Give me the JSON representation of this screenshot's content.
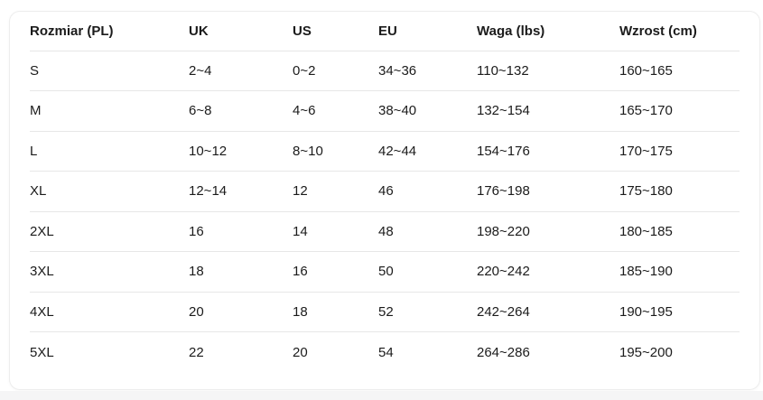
{
  "table": {
    "columns": [
      "Rozmiar (PL)",
      "UK",
      "US",
      "EU",
      "Waga (lbs)",
      "Wzrost (cm)"
    ],
    "rows": [
      [
        "S",
        "2~4",
        "0~2",
        "34~36",
        "110~132",
        "160~165"
      ],
      [
        "M",
        "6~8",
        "4~6",
        "38~40",
        "132~154",
        "165~170"
      ],
      [
        "L",
        "10~12",
        "8~10",
        "42~44",
        "154~176",
        "170~175"
      ],
      [
        "XL",
        "12~14",
        "12",
        "46",
        "176~198",
        "175~180"
      ],
      [
        "2XL",
        "16",
        "14",
        "48",
        "198~220",
        "180~185"
      ],
      [
        "3XL",
        "18",
        "16",
        "50",
        "220~242",
        "185~190"
      ],
      [
        "4XL",
        "20",
        "18",
        "52",
        "242~264",
        "190~195"
      ],
      [
        "5XL",
        "22",
        "20",
        "54",
        "264~286",
        "195~200"
      ]
    ]
  },
  "colors": {
    "text": "#1b1b1b",
    "row_border": "#e7e7e7",
    "card_border": "#ededed",
    "card_bg": "#ffffff",
    "page_bg": "#ffffff",
    "bottom_strip": "#f5f5f6"
  }
}
